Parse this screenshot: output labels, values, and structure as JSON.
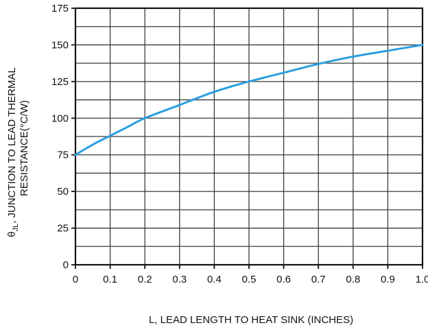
{
  "chart_data": {
    "type": "line",
    "xlabel": "L, LEAD LENGTH TO HEAT SINK (INCHES)",
    "ylabel": {
      "symbol": "θ",
      "subscript": "JL",
      "text": ", JUNCTION TO LEAD THERMAL",
      "line2": "RESISTANCE(°C/W)"
    },
    "xlim": [
      0,
      1.0
    ],
    "ylim": [
      0,
      175
    ],
    "x_ticks": [
      {
        "value": 0,
        "label": "0"
      },
      {
        "value": 0.1,
        "label": "0.1"
      },
      {
        "value": 0.2,
        "label": "0.2"
      },
      {
        "value": 0.3,
        "label": "0.3"
      },
      {
        "value": 0.4,
        "label": "0.4"
      },
      {
        "value": 0.5,
        "label": "0.5"
      },
      {
        "value": 0.6,
        "label": "0.6"
      },
      {
        "value": 0.7,
        "label": "0.7"
      },
      {
        "value": 0.8,
        "label": "0.8"
      },
      {
        "value": 0.9,
        "label": "0.9"
      },
      {
        "value": 1.0,
        "label": "1.0"
      }
    ],
    "y_ticks": [
      {
        "value": 0,
        "label": "0"
      },
      {
        "value": 25,
        "label": "25"
      },
      {
        "value": 50,
        "label": "50"
      },
      {
        "value": 75,
        "label": "75"
      },
      {
        "value": 100,
        "label": "100"
      },
      {
        "value": 125,
        "label": "125"
      },
      {
        "value": 150,
        "label": "150"
      },
      {
        "value": 175,
        "label": "175"
      }
    ],
    "grid": true,
    "minor_grid_y_step": 12.5,
    "series": [
      {
        "color": "#2a9ee0",
        "x": [
          0,
          0.05,
          0.1,
          0.15,
          0.2,
          0.3,
          0.4,
          0.5,
          0.6,
          0.7,
          0.8,
          0.9,
          1.0
        ],
        "y": [
          75,
          82,
          88,
          94,
          100,
          109,
          118,
          125,
          131,
          137,
          142,
          146,
          150
        ]
      }
    ]
  }
}
